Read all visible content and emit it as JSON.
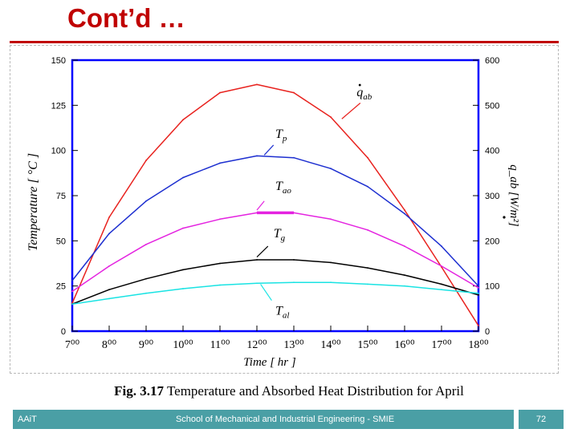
{
  "slide": {
    "title": "Cont’d …",
    "caption_prefix": "Fig. 3.",
    "caption_number": "17",
    "caption_text": " Temperature and Absorbed Heat Distribution for April"
  },
  "footer": {
    "left": "AAiT",
    "center": "School of Mechanical and Industrial Engineering - SMIE",
    "page": "72"
  },
  "colors": {
    "title": "#c00000",
    "frame": "#0000ff",
    "footer": "#4a9fa5"
  },
  "chart_data": {
    "type": "line",
    "xlabel": "Time  [ hr ]",
    "ylabel": "Temperature  [ °C ]",
    "ylabel2": "q_ab [W/m²]",
    "x_ticks": [
      {
        "hour": "7",
        "label": "7⁰⁰"
      },
      {
        "hour": "8",
        "label": "8⁰⁰"
      },
      {
        "hour": "9",
        "label": "9⁰⁰"
      },
      {
        "hour": "10",
        "label": "10⁰⁰"
      },
      {
        "hour": "11",
        "label": "11⁰⁰"
      },
      {
        "hour": "12",
        "label": "12⁰⁰"
      },
      {
        "hour": "13",
        "label": "13⁰⁰"
      },
      {
        "hour": "14",
        "label": "14⁰⁰"
      },
      {
        "hour": "15",
        "label": "15⁰⁰"
      },
      {
        "hour": "16",
        "label": "16⁰⁰"
      },
      {
        "hour": "17",
        "label": "17⁰⁰"
      },
      {
        "hour": "18",
        "label": "18⁰⁰"
      }
    ],
    "xlim": [
      7,
      18
    ],
    "ylim": [
      0,
      150
    ],
    "ylim2": [
      0,
      600
    ],
    "y_ticks": [
      0,
      25,
      50,
      75,
      100,
      125,
      150
    ],
    "y2_ticks": [
      0,
      100,
      200,
      300,
      400,
      500,
      600
    ],
    "series": [
      {
        "name": "q_ab",
        "label_main": "q",
        "label_sub": "ab",
        "dot": true,
        "axis": "right",
        "color": "#e8221e",
        "x": [
          7,
          8,
          9,
          10,
          11,
          12,
          13,
          14,
          15,
          16,
          17,
          18
        ],
        "values": [
          62,
          252,
          378,
          468,
          528,
          546,
          528,
          474,
          384,
          268,
          142,
          12
        ]
      },
      {
        "name": "T_p",
        "label_main": "T",
        "label_sub": "p",
        "dot": false,
        "axis": "left",
        "color": "#1d2fd0",
        "x": [
          7,
          8,
          9,
          10,
          11,
          12,
          13,
          14,
          15,
          16,
          17,
          18
        ],
        "values": [
          28,
          54,
          72,
          85,
          93,
          97,
          96,
          90,
          80,
          65,
          47,
          25
        ]
      },
      {
        "name": "T_ao",
        "label_main": "T",
        "label_sub": "ao",
        "dot": false,
        "axis": "left",
        "color": "#e423e0",
        "x": [
          7,
          8,
          9,
          10,
          11,
          12,
          13,
          14,
          15,
          16,
          17,
          18
        ],
        "values": [
          22,
          36,
          48,
          57,
          62,
          65.5,
          65.5,
          62,
          56,
          47,
          36,
          24
        ]
      },
      {
        "name": "T_g",
        "label_main": "T",
        "label_sub": "g",
        "dot": false,
        "axis": "left",
        "color": "#000000",
        "x": [
          7,
          8,
          9,
          10,
          11,
          12,
          13,
          14,
          15,
          16,
          17,
          18
        ],
        "values": [
          15,
          23,
          29,
          34,
          37.5,
          39.5,
          39.5,
          38,
          35,
          31,
          26,
          20
        ]
      },
      {
        "name": "T_al",
        "label_main": "T",
        "label_sub": "al",
        "dot": false,
        "axis": "left",
        "color": "#19e3e3",
        "x": [
          7,
          8,
          9,
          10,
          11,
          12,
          13,
          14,
          15,
          16,
          17,
          18
        ],
        "values": [
          15,
          18,
          21,
          23.5,
          25.5,
          26.5,
          27,
          27,
          26,
          25,
          23,
          21
        ]
      }
    ]
  }
}
